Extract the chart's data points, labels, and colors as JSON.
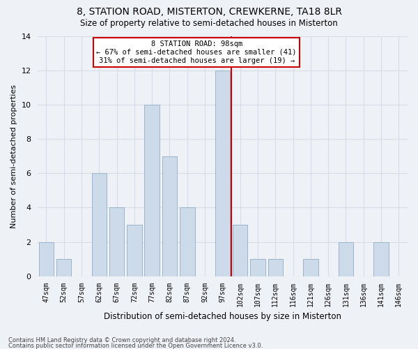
{
  "title": "8, STATION ROAD, MISTERTON, CREWKERNE, TA18 8LR",
  "subtitle": "Size of property relative to semi-detached houses in Misterton",
  "xlabel": "Distribution of semi-detached houses by size in Misterton",
  "ylabel": "Number of semi-detached properties",
  "bin_labels": [
    "47sqm",
    "52sqm",
    "57sqm",
    "62sqm",
    "67sqm",
    "72sqm",
    "77sqm",
    "82sqm",
    "87sqm",
    "92sqm",
    "97sqm",
    "102sqm",
    "107sqm",
    "112sqm",
    "116sqm",
    "121sqm",
    "126sqm",
    "131sqm",
    "136sqm",
    "141sqm",
    "146sqm"
  ],
  "counts": [
    2,
    1,
    0,
    6,
    4,
    3,
    10,
    7,
    4,
    0,
    12,
    3,
    1,
    1,
    0,
    1,
    0,
    2,
    0,
    2,
    0
  ],
  "bar_color": "#ccdaea",
  "bar_edge_color": "#9ab4cc",
  "highlight_line_index": 10,
  "highlight_line_color": "#cc0000",
  "ylim": [
    0,
    14
  ],
  "yticks": [
    0,
    2,
    4,
    6,
    8,
    10,
    12,
    14
  ],
  "annotation_title": "8 STATION ROAD: 98sqm",
  "annotation_line1": "← 67% of semi-detached houses are smaller (41)",
  "annotation_line2": "31% of semi-detached houses are larger (19) →",
  "annotation_box_color": "#ffffff",
  "annotation_box_edge": "#cc0000",
  "footer_line1": "Contains HM Land Registry data © Crown copyright and database right 2024.",
  "footer_line2": "Contains public sector information licensed under the Open Government Licence v3.0.",
  "background_color": "#eef2f7",
  "grid_color": "#d8dde5",
  "title_fontsize": 10,
  "subtitle_fontsize": 8.5
}
